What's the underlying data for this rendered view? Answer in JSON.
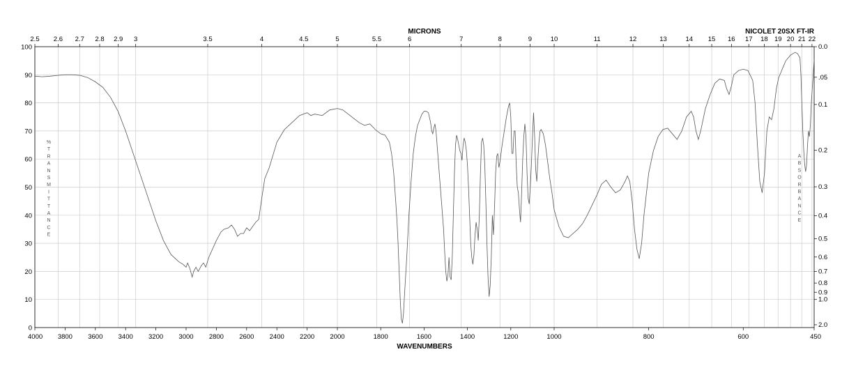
{
  "chart_data": {
    "type": "line",
    "title": "",
    "instrument": "NICOLET 20SX FT-IR",
    "top_axis_title": "MICRONS",
    "xlabel": "WAVENUMBERS",
    "ylabel": "%TRANSMITTANCE",
    "right_axis_title": "ABSORBANCE",
    "grid": true,
    "line_color": "#555555",
    "grid_color": "#cccccc",
    "y_range": [
      0,
      100
    ],
    "x_bottom_ticks": [
      "4000",
      "3800",
      "3600",
      "3400",
      "3200",
      "3000",
      "2800",
      "2600",
      "2400",
      "2200",
      "2000",
      "1800",
      "1600",
      "1400",
      "1200",
      "1000",
      "800",
      "600",
      "450"
    ],
    "x_top_ticks": [
      "2.5",
      "2.6",
      "2.7",
      "2.8",
      "2.9",
      "3",
      "3.5",
      "4",
      "4.5",
      "5",
      "5.5",
      "6",
      "7",
      "8",
      "9",
      "10",
      "11",
      "12",
      "13",
      "14",
      "15",
      "16",
      "17",
      "18",
      "19",
      "20",
      "21",
      "22"
    ],
    "y_left_ticks": [
      "0",
      "10",
      "20",
      "30",
      "40",
      "50",
      "60",
      "70",
      "80",
      "90",
      "100"
    ],
    "y_right_ticks": [
      "0.0",
      ".05",
      "0.1",
      "0.2",
      "0.3",
      "0.4",
      "0.5",
      "0.6",
      "0.7",
      "0.8",
      "0.9",
      "1.0",
      "2.0"
    ],
    "series": [
      {
        "points": [
          [
            4000,
            89.5
          ],
          [
            3950,
            89.3
          ],
          [
            3900,
            89.5
          ],
          [
            3850,
            89.8
          ],
          [
            3800,
            90
          ],
          [
            3750,
            90
          ],
          [
            3700,
            89.8
          ],
          [
            3650,
            89
          ],
          [
            3600,
            87.5
          ],
          [
            3550,
            85.5
          ],
          [
            3500,
            82
          ],
          [
            3450,
            77
          ],
          [
            3400,
            70
          ],
          [
            3350,
            62
          ],
          [
            3300,
            54
          ],
          [
            3250,
            46
          ],
          [
            3200,
            38
          ],
          [
            3150,
            31
          ],
          [
            3100,
            26
          ],
          [
            3050,
            23.5
          ],
          [
            3020,
            22.5
          ],
          [
            3000,
            21.5
          ],
          [
            2990,
            23
          ],
          [
            2975,
            21
          ],
          [
            2960,
            18
          ],
          [
            2950,
            20
          ],
          [
            2935,
            21.5
          ],
          [
            2920,
            20
          ],
          [
            2900,
            22
          ],
          [
            2885,
            23
          ],
          [
            2870,
            21.5
          ],
          [
            2850,
            25
          ],
          [
            2800,
            31
          ],
          [
            2770,
            34
          ],
          [
            2750,
            35
          ],
          [
            2720,
            35.5
          ],
          [
            2700,
            36.5
          ],
          [
            2680,
            35
          ],
          [
            2660,
            32.5
          ],
          [
            2640,
            33.5
          ],
          [
            2620,
            33.5
          ],
          [
            2600,
            35.5
          ],
          [
            2580,
            34.5
          ],
          [
            2560,
            36
          ],
          [
            2540,
            37.5
          ],
          [
            2520,
            38.5
          ],
          [
            2500,
            46
          ],
          [
            2480,
            53
          ],
          [
            2450,
            57
          ],
          [
            2400,
            66
          ],
          [
            2350,
            70.5
          ],
          [
            2300,
            73
          ],
          [
            2250,
            75.5
          ],
          [
            2200,
            76.5
          ],
          [
            2175,
            75.5
          ],
          [
            2150,
            76
          ],
          [
            2100,
            75.5
          ],
          [
            2050,
            77.5
          ],
          [
            2000,
            78
          ],
          [
            1975,
            77.5
          ],
          [
            1950,
            76
          ],
          [
            1925,
            74.5
          ],
          [
            1900,
            73
          ],
          [
            1875,
            72
          ],
          [
            1850,
            72.5
          ],
          [
            1825,
            70.5
          ],
          [
            1800,
            69
          ],
          [
            1780,
            68.5
          ],
          [
            1760,
            66
          ],
          [
            1750,
            62
          ],
          [
            1740,
            55
          ],
          [
            1730,
            44
          ],
          [
            1725,
            38
          ],
          [
            1720,
            30
          ],
          [
            1715,
            20
          ],
          [
            1710,
            10
          ],
          [
            1705,
            3
          ],
          [
            1700,
            1.5
          ],
          [
            1695,
            5
          ],
          [
            1690,
            12
          ],
          [
            1680,
            25
          ],
          [
            1670,
            40
          ],
          [
            1660,
            52
          ],
          [
            1650,
            62
          ],
          [
            1640,
            68
          ],
          [
            1630,
            72
          ],
          [
            1620,
            74
          ],
          [
            1610,
            76
          ],
          [
            1600,
            77
          ],
          [
            1590,
            77
          ],
          [
            1580,
            76.5
          ],
          [
            1570,
            73
          ],
          [
            1565,
            70
          ],
          [
            1560,
            69
          ],
          [
            1555,
            71
          ],
          [
            1550,
            72.5
          ],
          [
            1545,
            70
          ],
          [
            1540,
            65
          ],
          [
            1530,
            55
          ],
          [
            1520,
            45
          ],
          [
            1510,
            35
          ],
          [
            1505,
            27
          ],
          [
            1500,
            20
          ],
          [
            1495,
            16.5
          ],
          [
            1490,
            18.5
          ],
          [
            1485,
            25
          ],
          [
            1480,
            18
          ],
          [
            1475,
            17
          ],
          [
            1470,
            25
          ],
          [
            1465,
            40
          ],
          [
            1460,
            55
          ],
          [
            1455,
            65
          ],
          [
            1450,
            68.5
          ],
          [
            1445,
            67
          ],
          [
            1440,
            65
          ],
          [
            1435,
            63
          ],
          [
            1430,
            62
          ],
          [
            1425,
            59.5
          ],
          [
            1420,
            65
          ],
          [
            1415,
            67.5
          ],
          [
            1410,
            66
          ],
          [
            1405,
            63
          ],
          [
            1400,
            58
          ],
          [
            1395,
            50
          ],
          [
            1390,
            40
          ],
          [
            1385,
            30
          ],
          [
            1380,
            25
          ],
          [
            1375,
            22.5
          ],
          [
            1370,
            26
          ],
          [
            1365,
            33
          ],
          [
            1360,
            37.5
          ],
          [
            1355,
            35
          ],
          [
            1350,
            31
          ],
          [
            1345,
            40
          ],
          [
            1340,
            55
          ],
          [
            1335,
            66
          ],
          [
            1330,
            67.5
          ],
          [
            1325,
            65
          ],
          [
            1320,
            58
          ],
          [
            1315,
            45
          ],
          [
            1310,
            30
          ],
          [
            1305,
            18
          ],
          [
            1300,
            11
          ],
          [
            1295,
            15
          ],
          [
            1290,
            25
          ],
          [
            1285,
            40
          ],
          [
            1280,
            33
          ],
          [
            1275,
            43
          ],
          [
            1270,
            55
          ],
          [
            1265,
            61
          ],
          [
            1260,
            62
          ],
          [
            1255,
            57
          ],
          [
            1250,
            59
          ],
          [
            1245,
            62
          ],
          [
            1240,
            65
          ],
          [
            1230,
            70
          ],
          [
            1220,
            75
          ],
          [
            1210,
            79
          ],
          [
            1205,
            80
          ],
          [
            1200,
            75
          ],
          [
            1195,
            62
          ],
          [
            1190,
            62
          ],
          [
            1185,
            70
          ],
          [
            1180,
            70
          ],
          [
            1175,
            58
          ],
          [
            1170,
            50
          ],
          [
            1165,
            48
          ],
          [
            1160,
            42
          ],
          [
            1155,
            37.5
          ],
          [
            1150,
            48
          ],
          [
            1145,
            60
          ],
          [
            1140,
            68
          ],
          [
            1135,
            72.5
          ],
          [
            1130,
            68
          ],
          [
            1125,
            55
          ],
          [
            1120,
            46
          ],
          [
            1115,
            44
          ],
          [
            1110,
            50
          ],
          [
            1105,
            58
          ],
          [
            1100,
            68
          ],
          [
            1095,
            76.5
          ],
          [
            1090,
            68
          ],
          [
            1085,
            56
          ],
          [
            1080,
            52
          ],
          [
            1075,
            60
          ],
          [
            1070,
            66
          ],
          [
            1065,
            70
          ],
          [
            1060,
            70.5
          ],
          [
            1050,
            69
          ],
          [
            1040,
            65
          ],
          [
            1030,
            59
          ],
          [
            1020,
            53
          ],
          [
            1010,
            48
          ],
          [
            1000,
            42
          ],
          [
            990,
            36
          ],
          [
            980,
            32.5
          ],
          [
            970,
            32
          ],
          [
            960,
            33.5
          ],
          [
            950,
            35
          ],
          [
            940,
            37
          ],
          [
            930,
            40
          ],
          [
            920,
            43.5
          ],
          [
            910,
            47
          ],
          [
            900,
            51
          ],
          [
            890,
            52.5
          ],
          [
            880,
            50
          ],
          [
            870,
            48
          ],
          [
            860,
            49
          ],
          [
            850,
            52
          ],
          [
            845,
            54
          ],
          [
            840,
            52
          ],
          [
            835,
            45
          ],
          [
            830,
            35
          ],
          [
            825,
            28
          ],
          [
            820,
            24.5
          ],
          [
            815,
            30
          ],
          [
            810,
            40
          ],
          [
            800,
            55
          ],
          [
            790,
            63
          ],
          [
            780,
            68
          ],
          [
            770,
            70.5
          ],
          [
            760,
            71
          ],
          [
            750,
            69
          ],
          [
            740,
            67
          ],
          [
            730,
            70
          ],
          [
            720,
            75
          ],
          [
            710,
            77
          ],
          [
            705,
            75
          ],
          [
            700,
            70
          ],
          [
            695,
            67
          ],
          [
            690,
            70
          ],
          [
            680,
            78
          ],
          [
            670,
            83
          ],
          [
            660,
            87
          ],
          [
            650,
            88.5
          ],
          [
            640,
            88
          ],
          [
            635,
            85
          ],
          [
            630,
            83
          ],
          [
            625,
            86
          ],
          [
            620,
            90
          ],
          [
            610,
            91.5
          ],
          [
            600,
            92
          ],
          [
            590,
            91.5
          ],
          [
            580,
            88
          ],
          [
            575,
            80
          ],
          [
            570,
            65
          ],
          [
            565,
            52
          ],
          [
            560,
            48
          ],
          [
            555,
            55
          ],
          [
            550,
            70
          ],
          [
            545,
            75
          ],
          [
            540,
            74
          ],
          [
            535,
            78
          ],
          [
            530,
            85
          ],
          [
            525,
            89
          ],
          [
            520,
            91
          ],
          [
            515,
            93
          ],
          [
            510,
            95
          ],
          [
            505,
            96
          ],
          [
            500,
            97
          ],
          [
            495,
            97.5
          ],
          [
            490,
            98
          ],
          [
            485,
            97.5
          ],
          [
            480,
            96
          ],
          [
            478,
            90
          ],
          [
            476,
            80
          ],
          [
            474,
            70
          ],
          [
            472,
            63
          ],
          [
            470,
            58
          ],
          [
            468,
            55.5
          ],
          [
            466,
            58
          ],
          [
            464,
            65
          ],
          [
            462,
            70
          ],
          [
            460,
            68
          ],
          [
            458,
            72
          ],
          [
            456,
            80
          ],
          [
            454,
            85
          ],
          [
            452,
            90
          ],
          [
            450,
            95.5
          ]
        ]
      }
    ]
  }
}
